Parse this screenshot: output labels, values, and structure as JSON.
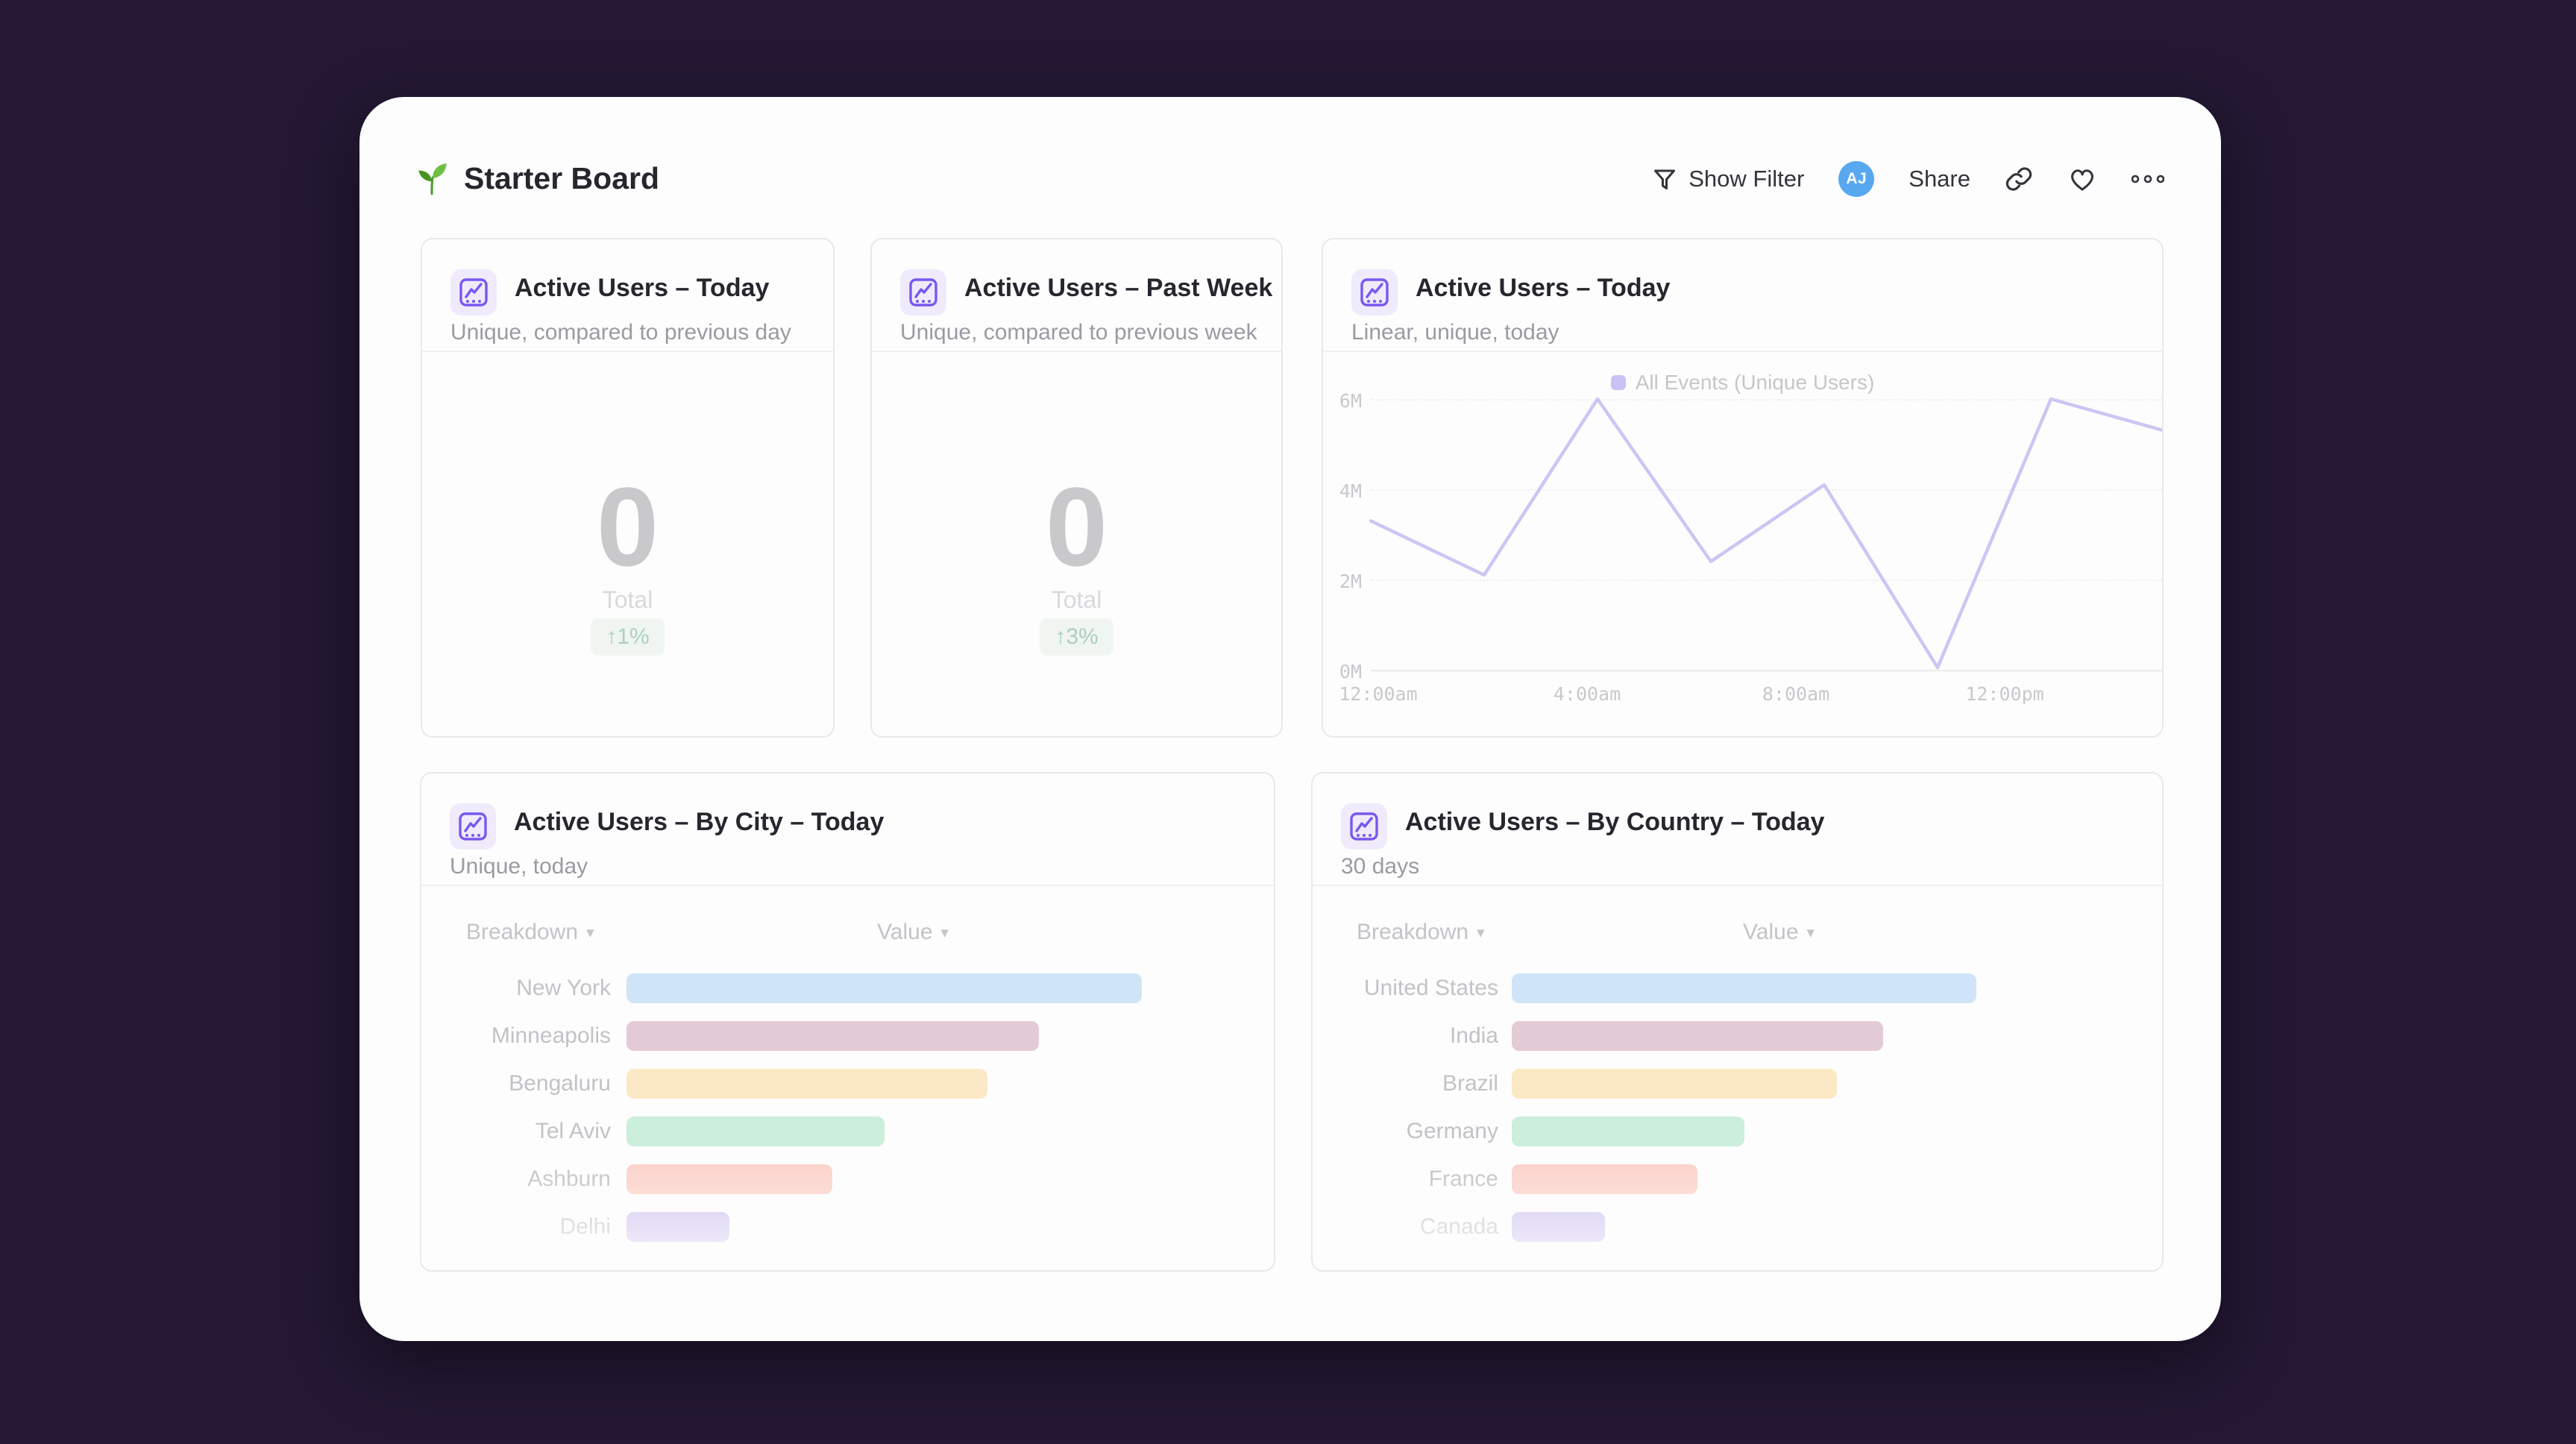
{
  "page_title": {
    "icon": "sprout-icon",
    "text": "Starter Board"
  },
  "toolbar": {
    "show_filter_label": "Show Filter",
    "avatar_initials": "AJ",
    "share_label": "Share",
    "icons": [
      "funnel-icon",
      "link-icon",
      "heart-icon",
      "ellipsis-icon"
    ]
  },
  "cards": {
    "today_total": {
      "title": "Active Users – Today",
      "subtitle": "Unique, compared to previous day",
      "value": "0",
      "value_label": "Total",
      "delta": "↑1%"
    },
    "past_week_total": {
      "title": "Active Users – Past Week",
      "subtitle": "Unique, compared to previous week",
      "value": "0",
      "value_label": "Total",
      "delta": "↑3%"
    },
    "today_line": {
      "title": "Active Users – Today",
      "subtitle": "Linear, unique, today",
      "legend": "All Events (Unique Users)"
    },
    "by_city": {
      "title": "Active Users – By City – Today",
      "subtitle": "Unique, today",
      "col_breakdown": "Breakdown",
      "col_value": "Value"
    },
    "by_country": {
      "title": "Active Users – By Country – Today",
      "subtitle": "30 days",
      "col_breakdown": "Breakdown",
      "col_value": "Value"
    }
  },
  "colors": {
    "accent_purple": "#7a57f0",
    "avatar_blue": "#58a8f0",
    "delta_green": "#abd0bf",
    "page_background": "#241834",
    "card_background": "#fdfdfd"
  },
  "chart_data": [
    {
      "type": "line",
      "title": "Active Users – Today",
      "legend_position": "top",
      "grid": "horizontal-dotted",
      "line_color": "#cdc5f3",
      "series": [
        {
          "name": "All Events (Unique Users)",
          "values_millions": [
            3.3,
            2.1,
            6.0,
            2.4,
            4.1,
            0.05,
            6.0,
            5.3
          ]
        }
      ],
      "ylim_millions": [
        0,
        6
      ],
      "yticks": [
        "0M",
        "2M",
        "4M",
        "6M"
      ],
      "xticks": [
        "12:00am",
        "4:00am",
        "8:00am",
        "12:00pm"
      ]
    },
    {
      "type": "bar",
      "title": "Active Users – By City – Today",
      "orientation": "horizontal",
      "categories": [
        "New York",
        "Minneapolis",
        "Bengaluru",
        "Tel Aviv",
        "Ashburn",
        "Delhi"
      ],
      "values_percent_of_max": [
        100,
        80,
        70,
        50,
        40,
        20
      ],
      "bar_colors": [
        "#cfe5f7",
        "#e3cbd6",
        "#fbe9c5",
        "#cbeedd",
        "#fbd1c8",
        "#cfc2f1"
      ]
    },
    {
      "type": "bar",
      "title": "Active Users – By Country – Today",
      "orientation": "horizontal",
      "categories": [
        "United States",
        "India",
        "Brazil",
        "Germany",
        "France",
        "Canada"
      ],
      "values_percent_of_max": [
        100,
        80,
        70,
        50,
        40,
        20
      ],
      "bar_colors": [
        "#cfe5f7",
        "#e3cbd6",
        "#fbe9c5",
        "#cbeedd",
        "#fbd1c8",
        "#cfc2f1"
      ]
    }
  ]
}
